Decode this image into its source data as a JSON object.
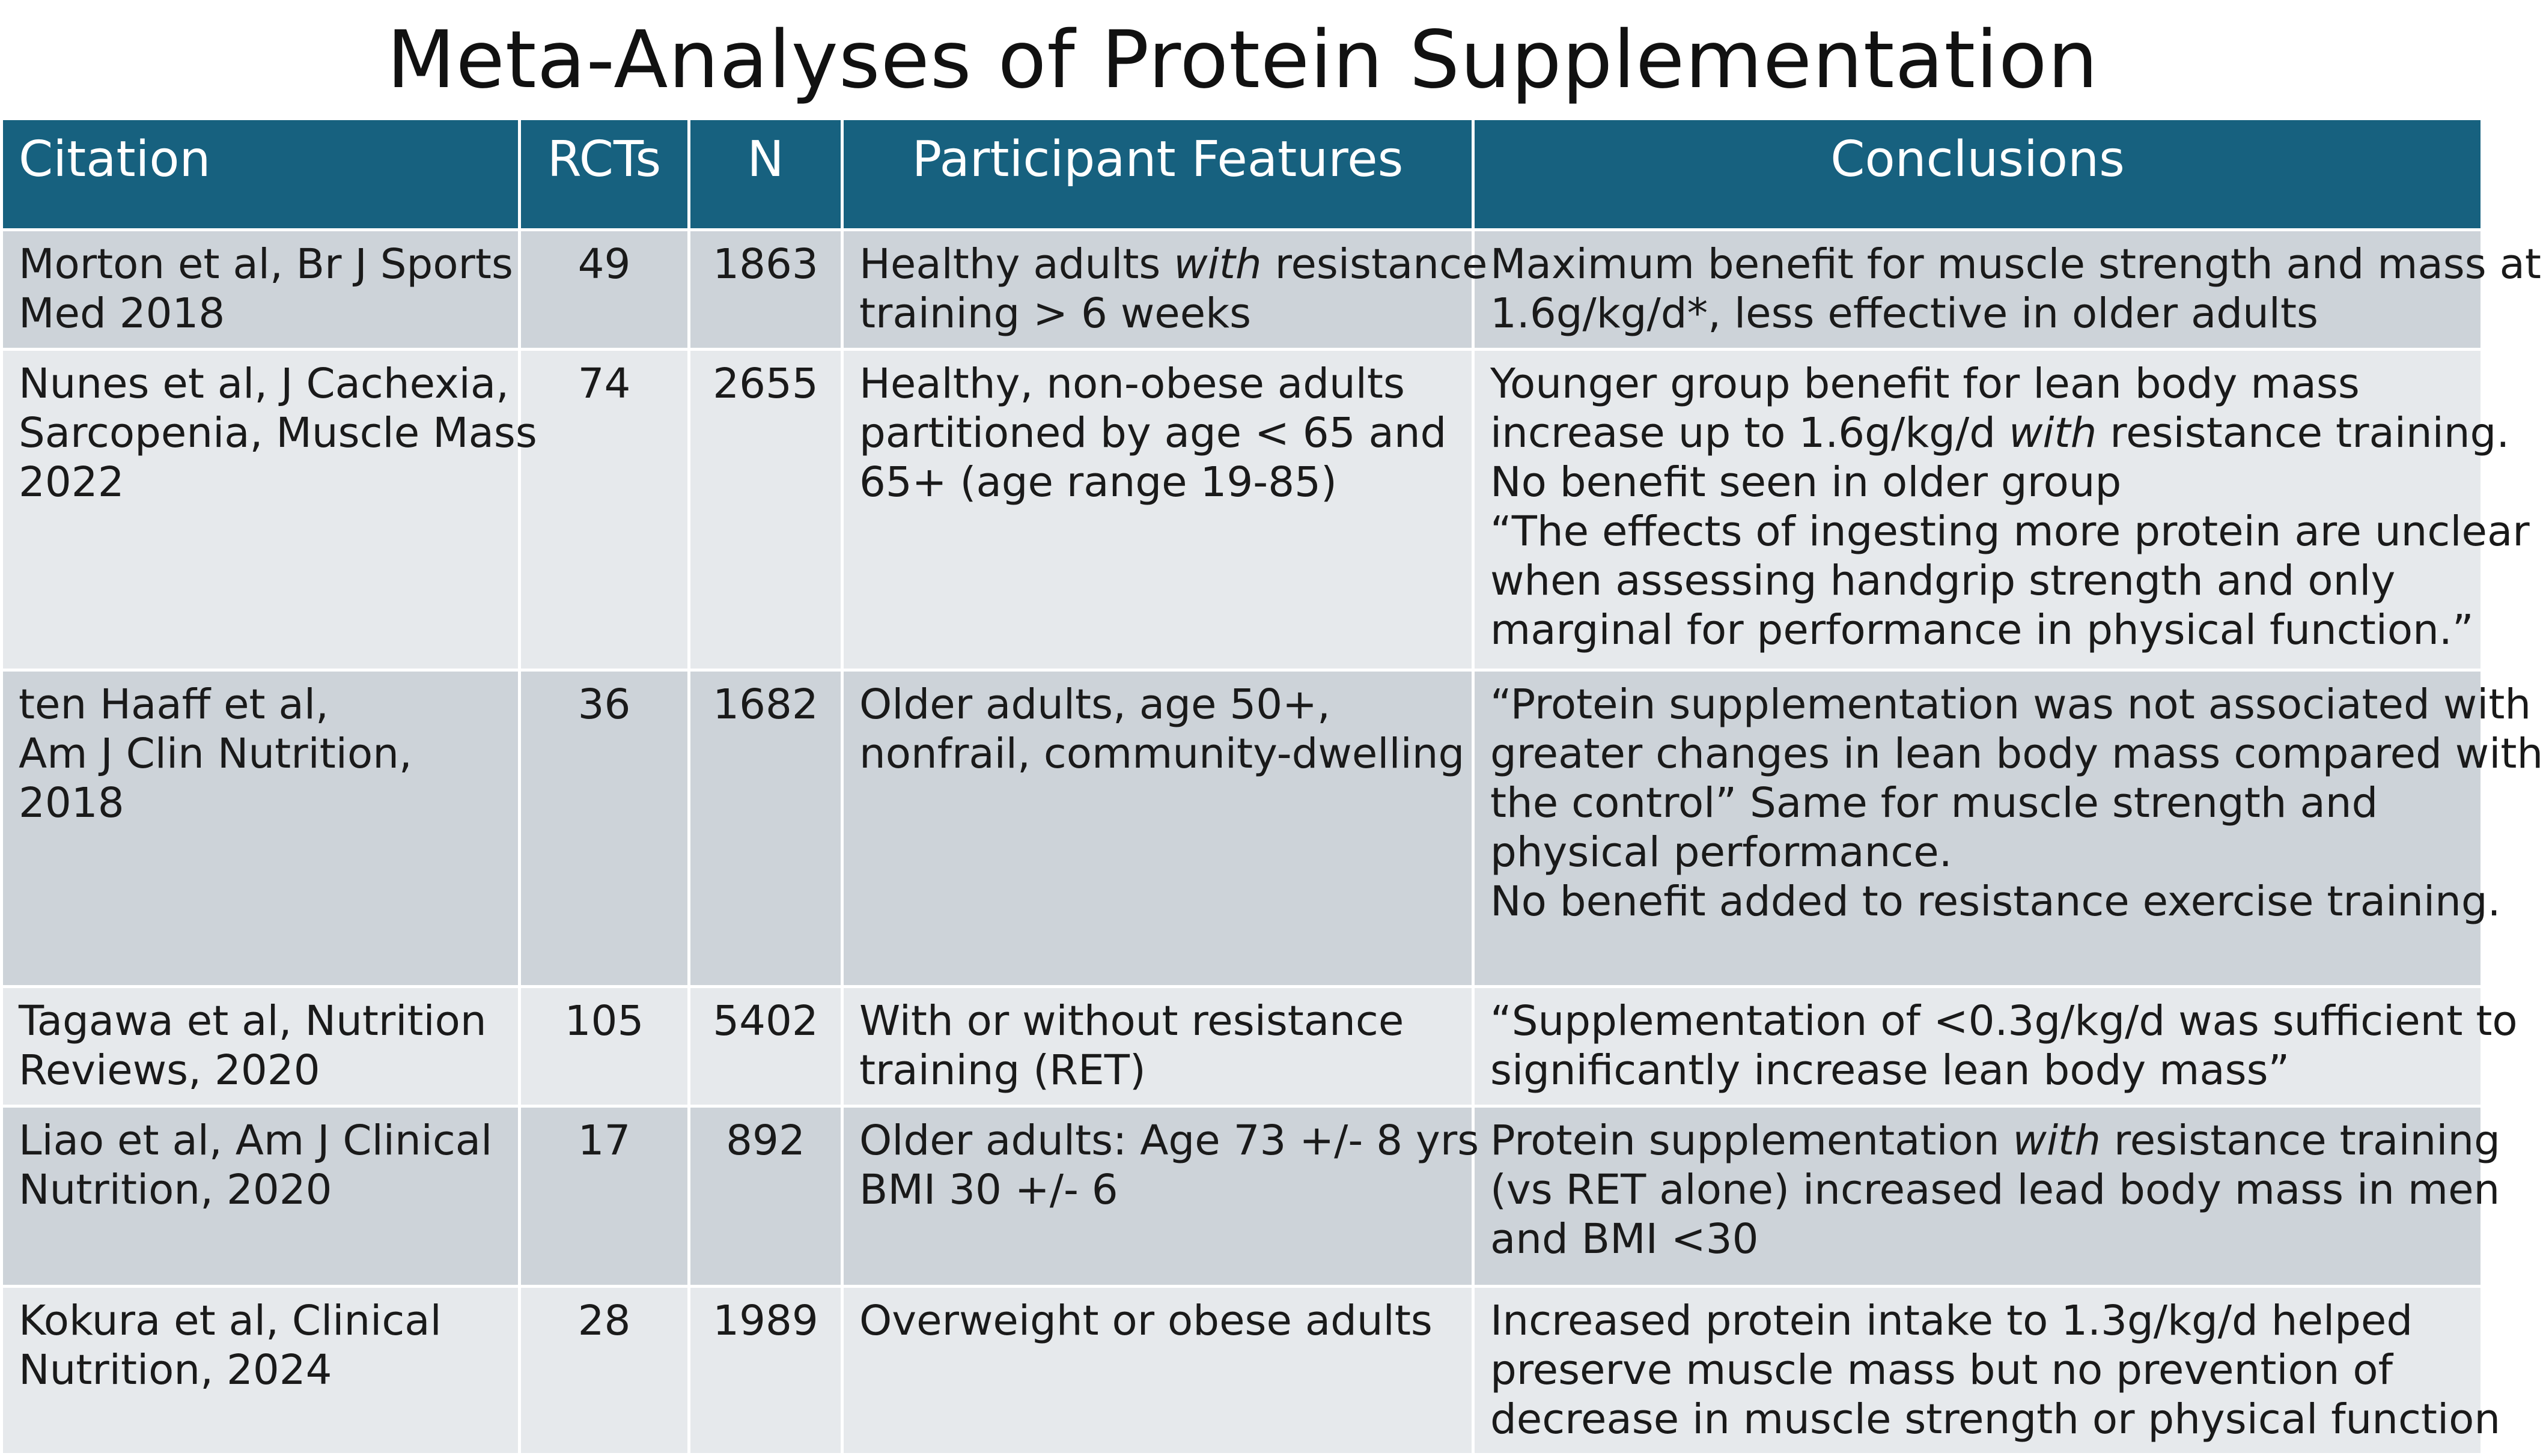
{
  "slide": {
    "title": "Meta-Analyses of Protein Supplementation"
  },
  "table": {
    "headers": {
      "citation": "Citation",
      "rcts": "RCTs",
      "n": "N",
      "features": "Participant Features",
      "conclusions": "Conclusions"
    },
    "rows": [
      {
        "citation": [
          "Morton et al, Br J Sports",
          "Med 2018"
        ],
        "rcts": "49",
        "n": "1863",
        "features": {
          "l1a": "Healthy adults ",
          "l1b": "with",
          "l1c": " resistance",
          "l2": "training  > 6 weeks"
        },
        "conclusions": [
          "Maximum benefit for muscle strength and mass at",
          "1.6g/kg/d*, less effective in older adults"
        ]
      },
      {
        "citation": [
          "Nunes et al, J Cachexia,",
          "Sarcopenia, Muscle Mass",
          "2022"
        ],
        "rcts": "74",
        "n": "2655",
        "features": [
          "Healthy, non-obese adults",
          "partitioned by age < 65 and",
          "65+ (age range 19-85)"
        ],
        "conclusions": {
          "l1": "Younger group benefit for lean body mass",
          "l2a": "increase up to 1.6g/kg/d ",
          "l2b": "with",
          "l2c": " resistance training.",
          "l3": "No benefit seen in older group",
          "l4": "“The effects of ingesting more protein are unclear",
          "l5": "when assessing handgrip strength and only",
          "l6": "marginal for performance in physical function.”"
        }
      },
      {
        "citation": [
          "ten Haaff et al,",
          "Am J Clin Nutrition,",
          "2018"
        ],
        "rcts": "36",
        "n": "1682",
        "features": [
          "Older adults, age 50+,",
          "nonfrail, community-dwelling"
        ],
        "conclusions": [
          "“Protein supplementation was not associated with",
          "greater changes in lean body mass compared with",
          "the control” Same for muscle strength and",
          "physical performance.",
          "No benefit added to resistance exercise training."
        ]
      },
      {
        "citation": [
          "Tagawa et al, Nutrition",
          "Reviews, 2020"
        ],
        "rcts": "105",
        "n": "5402",
        "features": [
          "With or without resistance",
          "training (RET)"
        ],
        "conclusions": [
          "“Supplementation of <0.3g/kg/d was sufficient to",
          "significantly increase lean body mass”"
        ]
      },
      {
        "citation": [
          "Liao et al, Am J Clinical",
          "Nutrition, 2020"
        ],
        "rcts": "17",
        "n": "892",
        "features": [
          "Older adults: Age 73 +/- 8 yrs",
          "BMI 30 +/- 6"
        ],
        "conclusions": {
          "l1a": "Protein supplementation ",
          "l1b": "with",
          "l1c": " resistance training",
          "l2": "(vs RET alone) increased lead body mass in men",
          "l3": "and BMI <30"
        }
      },
      {
        "citation": [
          "Kokura et al, Clinical",
          "Nutrition, 2024"
        ],
        "rcts": "28",
        "n": "1989",
        "features": [
          "Overweight or obese adults"
        ],
        "conclusions": [
          "Increased protein intake to 1.3g/kg/d helped",
          "preserve muscle mass but no prevention of",
          "decrease in muscle strength or physical function"
        ]
      }
    ]
  }
}
